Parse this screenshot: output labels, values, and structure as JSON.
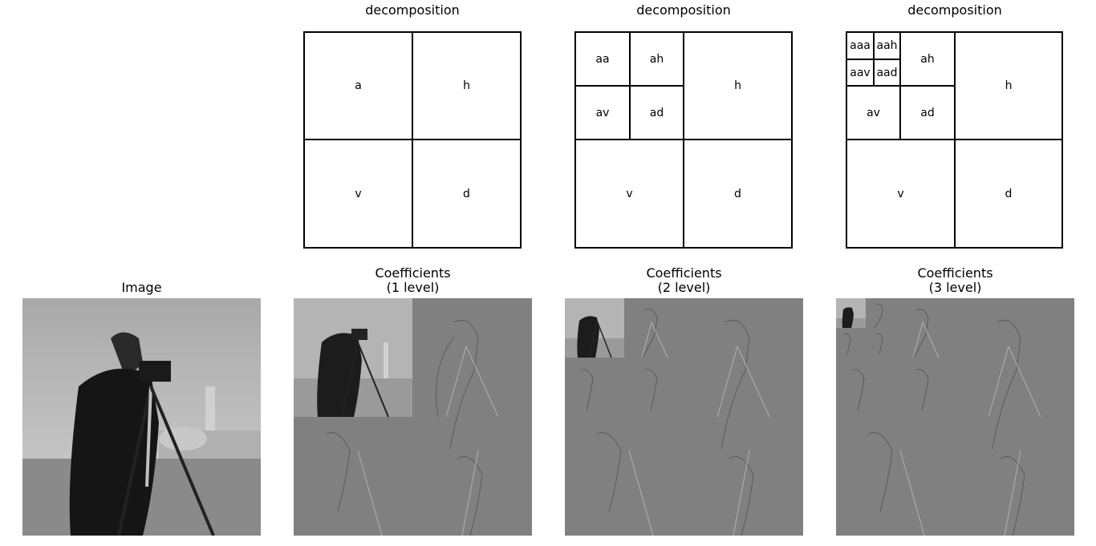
{
  "top_row": {
    "titles": [
      "decomposition",
      "decomposition",
      "decomposition"
    ],
    "level1": {
      "labels": [
        "a",
        "h",
        "v",
        "d"
      ]
    },
    "level2": {
      "labels": [
        "aa",
        "ah",
        "av",
        "ad",
        "h",
        "v",
        "d"
      ]
    },
    "level3": {
      "labels": [
        "aaa",
        "aah",
        "aav",
        "aad",
        "ah",
        "av",
        "ad",
        "h",
        "v",
        "d"
      ]
    }
  },
  "bottom_row": {
    "titles": [
      "Image",
      "Coefficients\n(1 level)",
      "Coefficients\n(2 level)",
      "Coefficients\n(3 level)"
    ]
  },
  "colors": {
    "background": "#ffffff",
    "line": "#000000",
    "detail_gray": "#808080"
  }
}
